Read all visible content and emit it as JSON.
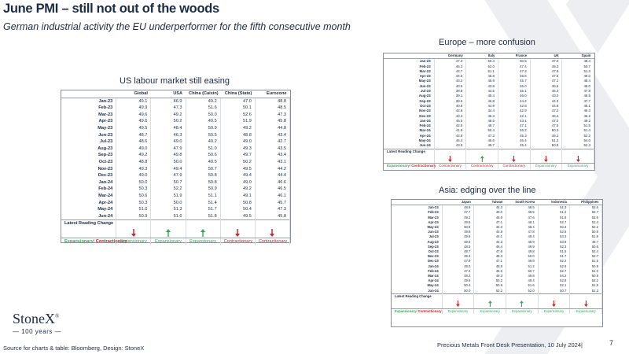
{
  "slide": {
    "title": "June PMI – still not out of the woods",
    "subtitle": "German industrial activity the EU underperformer for the fifth consecutive month",
    "source": "Source for charts & table: Bloomberg, Design: StoneX",
    "footer": "Precious Metals Front Desk Presentation, 10 July 2024|",
    "page_number": "7",
    "brand": "StoneX",
    "brand_mark": "®",
    "brand_years": "— 100 years —",
    "colors": {
      "navy": "#1c2b45",
      "up": "#3aa655",
      "down": "#d11f1f",
      "watermark": "#eceef2"
    }
  },
  "us_table": {
    "heading": "US labour market still easing",
    "columns": [
      "Global",
      "USA",
      "China (Caixin)",
      "China (State)",
      "Eurozone"
    ],
    "rows": [
      {
        "label": "Jan-23",
        "values": [
          "49.1",
          "46.9",
          "49.2",
          "47.0",
          "48.8"
        ]
      },
      {
        "label": "Feb-23",
        "values": [
          "49.9",
          "47.3",
          "51.6",
          "50.1",
          "48.5"
        ]
      },
      {
        "label": "Mar-23",
        "values": [
          "49.6",
          "49.2",
          "50.0",
          "52.6",
          "47.3"
        ]
      },
      {
        "label": "Apr-23",
        "values": [
          "49.6",
          "50.2",
          "49.5",
          "51.9",
          "45.8"
        ]
      },
      {
        "label": "May-23",
        "values": [
          "49.5",
          "48.4",
          "50.9",
          "49.2",
          "44.8"
        ]
      },
      {
        "label": "Jun-23",
        "values": [
          "48.7",
          "46.3",
          "50.5",
          "48.8",
          "43.4"
        ]
      },
      {
        "label": "Jul-23",
        "values": [
          "48.6",
          "49.0",
          "49.2",
          "49.0",
          "42.7"
        ]
      },
      {
        "label": "Aug-23",
        "values": [
          "49.0",
          "47.9",
          "51.0",
          "49.3",
          "43.5"
        ]
      },
      {
        "label": "Sep-23",
        "values": [
          "49.2",
          "49.8",
          "50.6",
          "49.7",
          "43.4"
        ]
      },
      {
        "label": "Oct-23",
        "values": [
          "48.8",
          "50.0",
          "49.5",
          "50.2",
          "43.1"
        ]
      },
      {
        "label": "Nov-23",
        "values": [
          "49.3",
          "49.4",
          "50.7",
          "49.5",
          "44.2"
        ]
      },
      {
        "label": "Dec-23",
        "values": [
          "49.0",
          "47.9",
          "50.8",
          "49.4",
          "44.4"
        ]
      },
      {
        "label": "Jan-24",
        "values": [
          "50.0",
          "50.7",
          "50.8",
          "49.0",
          "46.6"
        ]
      },
      {
        "label": "Feb-24",
        "values": [
          "50.3",
          "52.2",
          "50.9",
          "49.2",
          "46.5"
        ]
      },
      {
        "label": "Mar-24",
        "values": [
          "50.6",
          "51.9",
          "51.1",
          "49.1",
          "46.1"
        ]
      },
      {
        "label": "Apr-24",
        "values": [
          "50.3",
          "50.0",
          "51.4",
          "50.8",
          "45.7"
        ]
      },
      {
        "label": "May-24",
        "values": [
          "51.0",
          "51.3",
          "51.7",
          "50.4",
          "47.3"
        ]
      },
      {
        "label": "Jun-24",
        "values": [
          "50.9",
          "51.6",
          "51.8",
          "49.5",
          "45.8"
        ]
      }
    ],
    "latest_label": "Latest Reading Change",
    "latest": [
      "down",
      "up",
      "up",
      "down",
      "down"
    ],
    "legend_label_a": "Expansionary/ ",
    "legend_label_b": "Contractionary",
    "status": [
      "Expansionary",
      "Expansionary",
      "Expansionary",
      "Contractionary",
      "Contractionary"
    ]
  },
  "eu_table": {
    "heading": "Europe – more confusion",
    "columns": [
      "Germany",
      "Italy",
      "France",
      "UK",
      "Spain"
    ],
    "rows": [
      {
        "label": "Jan-23",
        "values": [
          "47.3",
          "50.4",
          "50.5",
          "47.0",
          "48.4"
        ]
      },
      {
        "label": "Feb-23",
        "values": [
          "46.3",
          "52.0",
          "47.4",
          "49.3",
          "50.7"
        ]
      },
      {
        "label": "Mar-23",
        "values": [
          "44.7",
          "51.1",
          "47.3",
          "47.9",
          "51.3"
        ]
      },
      {
        "label": "Apr-23",
        "values": [
          "44.5",
          "46.8",
          "45.6",
          "47.8",
          "49.0"
        ]
      },
      {
        "label": "May-23",
        "values": [
          "43.2",
          "45.9",
          "45.7",
          "47.1",
          "48.4"
        ]
      },
      {
        "label": "Jun-23",
        "values": [
          "40.6",
          "43.8",
          "46.0",
          "46.5",
          "48.0"
        ]
      },
      {
        "label": "Jul-23",
        "values": [
          "38.8",
          "44.5",
          "45.1",
          "45.3",
          "47.8"
        ]
      },
      {
        "label": "Aug-23",
        "values": [
          "39.1",
          "45.4",
          "46.0",
          "43.0",
          "46.5"
        ]
      },
      {
        "label": "Sep-23",
        "values": [
          "39.6",
          "46.8",
          "44.2",
          "44.3",
          "47.7"
        ]
      },
      {
        "label": "Oct-23",
        "values": [
          "40.8",
          "44.9",
          "42.8",
          "44.8",
          "45.1"
        ]
      },
      {
        "label": "Nov-23",
        "values": [
          "42.6",
          "44.4",
          "42.9",
          "47.2",
          "46.3"
        ]
      },
      {
        "label": "Dec-23",
        "values": [
          "43.3",
          "45.3",
          "42.1",
          "46.2",
          "46.2"
        ]
      },
      {
        "label": "Jan-24",
        "values": [
          "45.5",
          "48.5",
          "43.1",
          "47.0",
          "49.2"
        ]
      },
      {
        "label": "Feb-24",
        "values": [
          "42.5",
          "48.7",
          "47.1",
          "47.5",
          "51.5"
        ]
      },
      {
        "label": "Mar-24",
        "values": [
          "41.9",
          "50.4",
          "46.2",
          "50.3",
          "51.4"
        ]
      },
      {
        "label": "Apr-24",
        "values": [
          "42.5",
          "47.3",
          "45.3",
          "49.1",
          "52.2"
        ]
      },
      {
        "label": "May-24",
        "values": [
          "45.4",
          "45.6",
          "46.4",
          "51.2",
          "54.0"
        ]
      },
      {
        "label": "Jun-24",
        "values": [
          "43.5",
          "45.7",
          "45.4",
          "50.9",
          "52.3"
        ]
      }
    ],
    "latest_label": "Latest Reading Change",
    "latest": [
      "down",
      "up",
      "down",
      "down",
      "down"
    ],
    "legend_label_a": "Expansionary/ ",
    "legend_label_b": "Contractionary",
    "status": [
      "Contractionary",
      "Contractionary",
      "Contractionary",
      "Expansionary",
      "Expansionary"
    ]
  },
  "asia_table": {
    "heading": "Asia: edging over the line",
    "columns": [
      "Japan",
      "Taiwan",
      "South Korea",
      "Indonesia",
      "Philippines"
    ],
    "rows": [
      {
        "label": "Jan-23",
        "values": [
          "48.9",
          "44.3",
          "48.5",
          "51.3",
          "53.5"
        ]
      },
      {
        "label": "Feb-23",
        "values": [
          "47.7",
          "49.0",
          "48.5",
          "51.2",
          "52.7"
        ]
      },
      {
        "label": "Mar-23",
        "values": [
          "49.2",
          "48.6",
          "47.6",
          "51.9",
          "52.5"
        ]
      },
      {
        "label": "Apr-23",
        "values": [
          "49.5",
          "47.1",
          "48.1",
          "52.7",
          "51.4"
        ]
      },
      {
        "label": "May-23",
        "values": [
          "50.6",
          "44.3",
          "48.4",
          "50.3",
          "52.2"
        ]
      },
      {
        "label": "Jun-23",
        "values": [
          "49.8",
          "44.8",
          "47.8",
          "52.5",
          "50.9"
        ]
      },
      {
        "label": "Jul-23",
        "values": [
          "49.6",
          "44.1",
          "49.4",
          "53.3",
          "51.9"
        ]
      },
      {
        "label": "Aug-23",
        "values": [
          "49.6",
          "44.3",
          "48.9",
          "53.9",
          "49.7"
        ]
      },
      {
        "label": "Sep-23",
        "values": [
          "48.5",
          "46.4",
          "49.9",
          "52.3",
          "50.6"
        ]
      },
      {
        "label": "Oct-23",
        "values": [
          "48.7",
          "47.6",
          "49.8",
          "51.5",
          "52.4"
        ]
      },
      {
        "label": "Nov-23",
        "values": [
          "48.3",
          "48.3",
          "50.0",
          "51.7",
          "52.7"
        ]
      },
      {
        "label": "Dec-23",
        "values": [
          "47.9",
          "47.1",
          "49.9",
          "52.2",
          "51.5"
        ]
      },
      {
        "label": "Jan-24",
        "values": [
          "48.0",
          "48.8",
          "51.2",
          "52.9",
          "50.9"
        ]
      },
      {
        "label": "Feb-24",
        "values": [
          "47.2",
          "48.6",
          "50.7",
          "52.7",
          "51.0"
        ]
      },
      {
        "label": "Mar-24",
        "values": [
          "48.2",
          "49.3",
          "49.8",
          "54.2",
          "50.9"
        ]
      },
      {
        "label": "Apr-24",
        "values": [
          "49.6",
          "50.2",
          "49.4",
          "52.9",
          "52.2"
        ]
      },
      {
        "label": "May-24",
        "values": [
          "50.4",
          "50.9",
          "51.6",
          "52.1",
          "51.9"
        ]
      },
      {
        "label": "Jun-24",
        "values": [
          "50.0",
          "53.2",
          "52.0",
          "50.7",
          "51.3"
        ]
      }
    ],
    "latest_label": "Latest Reading Change",
    "latest": [
      "down",
      "up",
      "up",
      "down",
      "down"
    ],
    "legend_label_a": "Expansionary/ ",
    "legend_label_b": "Contractionary",
    "status": [
      "Expansionary",
      "Expansionary",
      "Expansionary",
      "Expansionary",
      "Expansionary"
    ]
  }
}
